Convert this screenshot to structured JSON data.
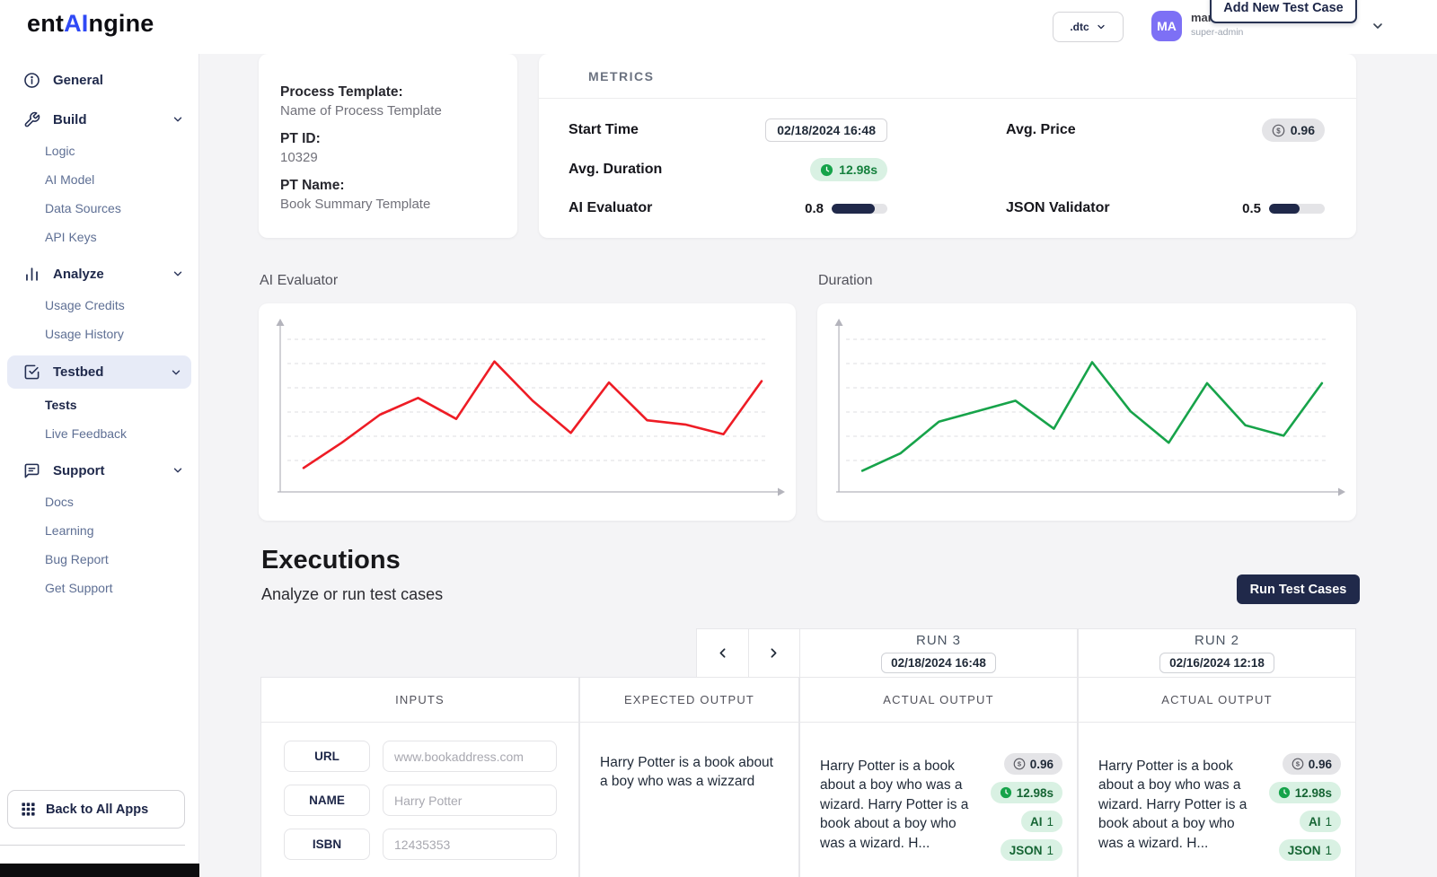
{
  "brand": {
    "pre": "ent",
    "mid": "AI",
    "post": "ngine"
  },
  "colors": {
    "accent": "#2f49f5",
    "navy": "#20294a",
    "green": "#16a34a",
    "red": "#ee1c25",
    "avatar_purple": "#7d70f5"
  },
  "header": {
    "env_value": ".dtc",
    "avatar": "MA",
    "user_name": "mar",
    "user_role": "super-admin",
    "add_button": "Add New Test Case"
  },
  "sidebar": {
    "general": "General",
    "build": "Build",
    "build_items": [
      "Logic",
      "AI Model",
      "Data Sources",
      "API Keys"
    ],
    "analyze": "Analyze",
    "analyze_items": [
      "Usage Credits",
      "Usage History"
    ],
    "testbed": "Testbed",
    "testbed_items": [
      "Tests",
      "Live Feedback"
    ],
    "support": "Support",
    "support_items": [
      "Docs",
      "Learning",
      "Bug Report",
      "Get Support"
    ],
    "back_button": "Back to All Apps"
  },
  "process_card": {
    "label": "Process Template:",
    "name": "Name of Process Template",
    "id_label": "PT ID:",
    "id": "10329",
    "name_label": "PT Name:",
    "template_name": "Book Summary Template"
  },
  "metrics": {
    "title": "METRICS",
    "start_label": "Start Time",
    "start_value": "02/18/2024 16:48",
    "price_label": "Avg. Price",
    "price_value": "0.96",
    "duration_label": "Avg. Duration",
    "duration_value": "12.98s",
    "ai_label": "AI Evaluator",
    "ai_value": "0.8",
    "ai_percent": 78,
    "json_label": "JSON Validator",
    "json_value": "0.5",
    "json_percent": 55
  },
  "chart_data": [
    {
      "type": "line",
      "title": "AI Evaluator",
      "color": "#ee1c25",
      "x": [
        0,
        1,
        2,
        3,
        4,
        5,
        6,
        7,
        8,
        9,
        10,
        11,
        12
      ],
      "values": [
        0.12,
        0.3,
        0.5,
        0.62,
        0.47,
        0.88,
        0.6,
        0.37,
        0.73,
        0.46,
        0.43,
        0.36,
        0.74
      ],
      "ylim": [
        0,
        1
      ],
      "grid": "dashed-horizontal",
      "legend": false,
      "xlabel": "",
      "ylabel": ""
    },
    {
      "type": "line",
      "title": "Duration",
      "color": "#17a34a",
      "x": [
        0,
        1,
        2,
        3,
        4,
        5,
        6,
        7,
        8,
        9,
        10,
        11,
        12
      ],
      "values": [
        2,
        4.5,
        9,
        10.5,
        12,
        8,
        17.5,
        10.5,
        6,
        14.5,
        8.5,
        7,
        14.5
      ],
      "ylim": [
        0,
        20
      ],
      "grid": "dashed-horizontal",
      "legend": false,
      "xlabel": "",
      "ylabel": ""
    }
  ],
  "executions": {
    "title": "Executions",
    "subtitle": "Analyze or run test cases",
    "run_button": "Run Test Cases",
    "runs": [
      {
        "name": "RUN 3",
        "date": "02/18/2024 16:48"
      },
      {
        "name": "RUN 2",
        "date": "02/16/2024 12:18"
      }
    ],
    "col_inputs": "INPUTS",
    "col_expected": "EXPECTED OUTPUT",
    "col_actual": "ACTUAL OUTPUT",
    "inputs": [
      {
        "label": "URL",
        "placeholder": "www.bookaddress.com"
      },
      {
        "label": "NAME",
        "placeholder": "Harry Potter"
      },
      {
        "label": "ISBN",
        "placeholder": "12435353"
      }
    ],
    "expected_output": "Harry Potter is a book about a boy who was a wizzard",
    "actual_output": "Harry Potter is a book about a boy who was a wizard. Harry Potter is a book about a boy who was a  wizard. H...",
    "badges": {
      "price": "0.96",
      "duration": "12.98s",
      "ai_name": "AI",
      "ai_score": "1",
      "json_name": "JSON",
      "json_score": "1"
    }
  }
}
